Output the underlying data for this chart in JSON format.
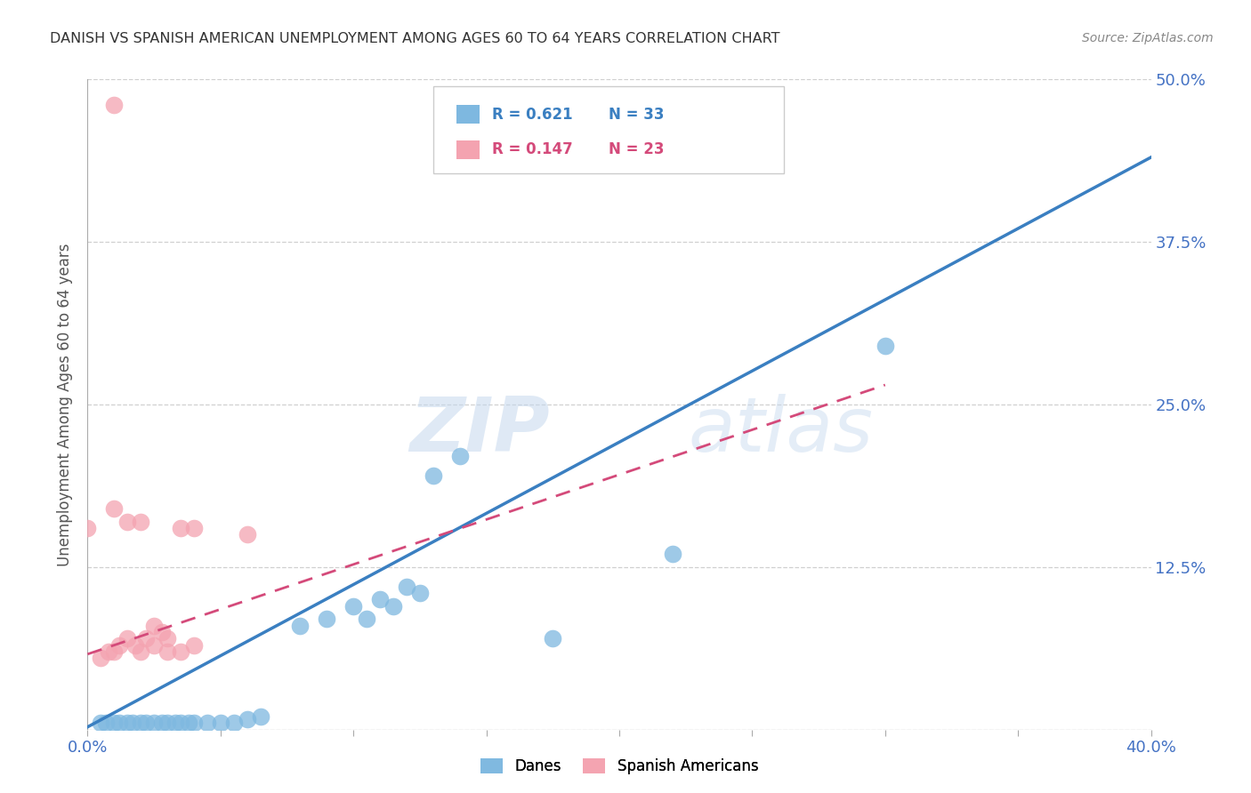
{
  "title": "DANISH VS SPANISH AMERICAN UNEMPLOYMENT AMONG AGES 60 TO 64 YEARS CORRELATION CHART",
  "source": "Source: ZipAtlas.com",
  "ylabel_label": "Unemployment Among Ages 60 to 64 years",
  "xlim": [
    0.0,
    0.4
  ],
  "ylim": [
    0.0,
    0.5
  ],
  "xtick_vals": [
    0.0,
    0.05,
    0.1,
    0.15,
    0.2,
    0.25,
    0.3,
    0.35,
    0.4
  ],
  "xtick_labels": [
    "0.0%",
    "",
    "",
    "",
    "",
    "",
    "",
    "",
    "40.0%"
  ],
  "ytick_vals": [
    0.0,
    0.125,
    0.25,
    0.375,
    0.5
  ],
  "ytick_labels": [
    "",
    "12.5%",
    "25.0%",
    "37.5%",
    "50.0%"
  ],
  "blue_R": "0.621",
  "blue_N": "33",
  "pink_R": "0.147",
  "pink_N": "23",
  "blue_color": "#7eb8e0",
  "pink_color": "#f4a3b0",
  "blue_line_color": "#3a7fc1",
  "pink_line_color": "#d44a7a",
  "blue_scatter": [
    [
      0.005,
      0.005
    ],
    [
      0.007,
      0.005
    ],
    [
      0.01,
      0.005
    ],
    [
      0.012,
      0.005
    ],
    [
      0.015,
      0.005
    ],
    [
      0.017,
      0.005
    ],
    [
      0.02,
      0.005
    ],
    [
      0.022,
      0.005
    ],
    [
      0.025,
      0.005
    ],
    [
      0.028,
      0.005
    ],
    [
      0.03,
      0.005
    ],
    [
      0.033,
      0.005
    ],
    [
      0.035,
      0.005
    ],
    [
      0.038,
      0.005
    ],
    [
      0.04,
      0.005
    ],
    [
      0.045,
      0.005
    ],
    [
      0.05,
      0.005
    ],
    [
      0.055,
      0.005
    ],
    [
      0.06,
      0.008
    ],
    [
      0.065,
      0.01
    ],
    [
      0.08,
      0.08
    ],
    [
      0.09,
      0.085
    ],
    [
      0.1,
      0.095
    ],
    [
      0.105,
      0.085
    ],
    [
      0.11,
      0.1
    ],
    [
      0.115,
      0.095
    ],
    [
      0.12,
      0.11
    ],
    [
      0.125,
      0.105
    ],
    [
      0.13,
      0.195
    ],
    [
      0.14,
      0.21
    ],
    [
      0.175,
      0.07
    ],
    [
      0.22,
      0.135
    ],
    [
      0.3,
      0.295
    ]
  ],
  "pink_scatter": [
    [
      0.005,
      0.055
    ],
    [
      0.008,
      0.06
    ],
    [
      0.01,
      0.06
    ],
    [
      0.012,
      0.065
    ],
    [
      0.015,
      0.07
    ],
    [
      0.018,
      0.065
    ],
    [
      0.02,
      0.06
    ],
    [
      0.022,
      0.07
    ],
    [
      0.025,
      0.065
    ],
    [
      0.028,
      0.075
    ],
    [
      0.03,
      0.07
    ],
    [
      0.035,
      0.155
    ],
    [
      0.04,
      0.155
    ],
    [
      0.06,
      0.15
    ],
    [
      0.01,
      0.17
    ],
    [
      0.015,
      0.16
    ],
    [
      0.0,
      0.155
    ],
    [
      0.01,
      0.48
    ],
    [
      0.02,
      0.16
    ],
    [
      0.025,
      0.08
    ],
    [
      0.03,
      0.06
    ],
    [
      0.035,
      0.06
    ],
    [
      0.04,
      0.065
    ]
  ],
  "blue_trend_x": [
    0.0,
    0.4
  ],
  "blue_trend_y": [
    0.002,
    0.44
  ],
  "pink_trend_x": [
    0.0,
    0.3
  ],
  "pink_trend_y": [
    0.058,
    0.265
  ],
  "watermark_zip": "ZIP",
  "watermark_atlas": "atlas",
  "background_color": "#ffffff",
  "grid_color": "#d0d0d0",
  "tick_color": "#4472c4",
  "axis_label_color": "#555555",
  "title_color": "#333333",
  "source_color": "#888888"
}
